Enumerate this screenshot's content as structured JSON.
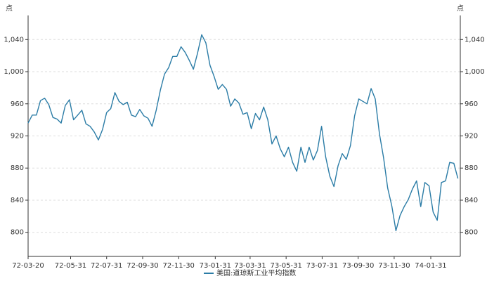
{
  "chart_data": {
    "type": "line",
    "y_label": "点",
    "y2_label": "点",
    "x": [
      "72-03-20",
      "72-03-27",
      "72-04-03",
      "72-04-10",
      "72-04-17",
      "72-04-24",
      "72-05-01",
      "72-05-08",
      "72-05-15",
      "72-05-22",
      "72-05-29",
      "72-06-05",
      "72-06-12",
      "72-06-19",
      "72-06-26",
      "72-07-03",
      "72-07-10",
      "72-07-17",
      "72-07-24",
      "72-07-31",
      "72-08-07",
      "72-08-14",
      "72-08-21",
      "72-08-28",
      "72-09-04",
      "72-09-11",
      "72-09-18",
      "72-09-25",
      "72-10-02",
      "72-10-09",
      "72-10-16",
      "72-10-23",
      "72-10-30",
      "72-11-06",
      "72-11-13",
      "72-11-20",
      "72-11-27",
      "72-12-04",
      "72-12-11",
      "72-12-18",
      "72-12-25",
      "73-01-01",
      "73-01-08",
      "73-01-15",
      "73-01-22",
      "73-01-29",
      "73-02-05",
      "73-02-12",
      "73-02-19",
      "73-02-26",
      "73-03-05",
      "73-03-12",
      "73-03-19",
      "73-03-26",
      "73-04-02",
      "73-04-09",
      "73-04-16",
      "73-04-23",
      "73-04-30",
      "73-05-07",
      "73-05-14",
      "73-05-21",
      "73-05-28",
      "73-06-04",
      "73-06-11",
      "73-06-18",
      "73-06-25",
      "73-07-02",
      "73-07-09",
      "73-07-16",
      "73-07-23",
      "73-07-30",
      "73-08-06",
      "73-08-13",
      "73-08-20",
      "73-08-27",
      "73-09-03",
      "73-09-10",
      "73-09-17",
      "73-09-24",
      "73-10-01",
      "73-10-08",
      "73-10-15",
      "73-10-22",
      "73-10-29",
      "73-11-05",
      "73-11-12",
      "73-11-19",
      "73-11-26",
      "73-12-03",
      "73-12-10",
      "73-12-17",
      "73-12-24",
      "73-12-31",
      "74-01-07",
      "74-01-14",
      "74-01-21",
      "74-01-28",
      "74-02-04",
      "74-02-11",
      "74-02-18",
      "74-02-25",
      "74-03-04",
      "74-03-11",
      "74-03-18"
    ],
    "series": [
      {
        "name": "美国:道琼斯工业平均指数",
        "color": "#2b7ca6",
        "values": [
          936,
          946,
          946,
          964,
          967,
          959,
          943,
          941,
          936,
          958,
          965,
          940,
          946,
          952,
          935,
          932,
          925,
          915,
          928,
          949,
          954,
          974,
          963,
          959,
          962,
          946,
          944,
          953,
          945,
          942,
          932,
          952,
          977,
          997,
          1005,
          1019,
          1019,
          1031,
          1024,
          1014,
          1003,
          1023,
          1046,
          1036,
          1008,
          994,
          978,
          984,
          978,
          957,
          966,
          961,
          947,
          949,
          929,
          948,
          940,
          956,
          940,
          910,
          920,
          904,
          894,
          906,
          887,
          876,
          906,
          887,
          906,
          890,
          902,
          932,
          894,
          870,
          857,
          883,
          898,
          891,
          908,
          945,
          966,
          963,
          960,
          979,
          966,
          923,
          893,
          855,
          833,
          802,
          821,
          832,
          841,
          854,
          864,
          832,
          862,
          858,
          825,
          815,
          862,
          864,
          887,
          886,
          867
        ]
      }
    ],
    "xlim": [
      "72-03-20",
      "74-03-22"
    ],
    "xticks": [
      "72-03-20",
      "72-05-31",
      "72-07-31",
      "72-09-30",
      "72-11-30",
      "73-01-31",
      "73-03-31",
      "73-05-31",
      "73-07-31",
      "73-09-30",
      "73-11-30",
      "74-01-31"
    ],
    "ylim": [
      770,
      1070
    ],
    "yticks": [
      800,
      840,
      880,
      920,
      960,
      {
        "value": 1000,
        "label": "1,000"
      },
      {
        "value": 1040,
        "label": "1,040"
      }
    ],
    "y2lim": [
      770,
      1070
    ],
    "y2ticks": [
      800,
      840,
      880,
      920,
      960,
      {
        "value": 1000,
        "label": "1,000"
      },
      {
        "value": 1040,
        "label": "1,040"
      }
    ],
    "grid": true,
    "legend": "bottom"
  }
}
